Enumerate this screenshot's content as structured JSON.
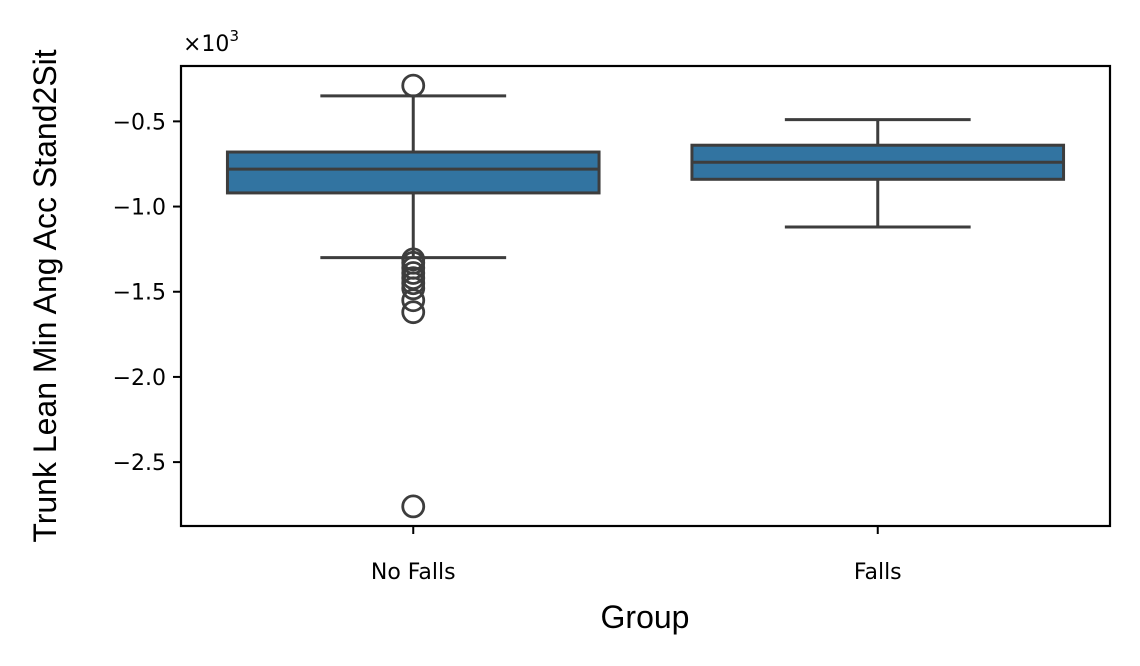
{
  "chart_data": {
    "type": "box",
    "title": "",
    "xlabel": "Group",
    "ylabel": "Trunk Lean Min Ang Acc Stand2Sit",
    "offset_label": "×10",
    "offset_exponent": "3",
    "categories": [
      "No Falls",
      "Falls"
    ],
    "ylim": [
      -2.875,
      -0.175
    ],
    "yticks": [
      -0.5,
      -1.0,
      -1.5,
      -2.0,
      -2.5
    ],
    "ytick_labels": [
      "−0.5",
      "−1.0",
      "−1.5",
      "−2.0",
      "−2.5"
    ],
    "box_color": "#3274a1",
    "edge_color": "#3d3d3d",
    "grid": false,
    "boxes": [
      {
        "category": "No Falls",
        "whisker_high": -0.35,
        "q3": -0.68,
        "median": -0.78,
        "q1": -0.92,
        "whisker_low": -1.3,
        "outliers": [
          -0.29,
          -1.31,
          -1.33,
          -1.36,
          -1.39,
          -1.42,
          -1.45,
          -1.48,
          -1.55,
          -1.62,
          -2.76
        ]
      },
      {
        "category": "Falls",
        "whisker_high": -0.49,
        "q3": -0.64,
        "median": -0.74,
        "q1": -0.84,
        "whisker_low": -1.12,
        "outliers": []
      }
    ]
  }
}
